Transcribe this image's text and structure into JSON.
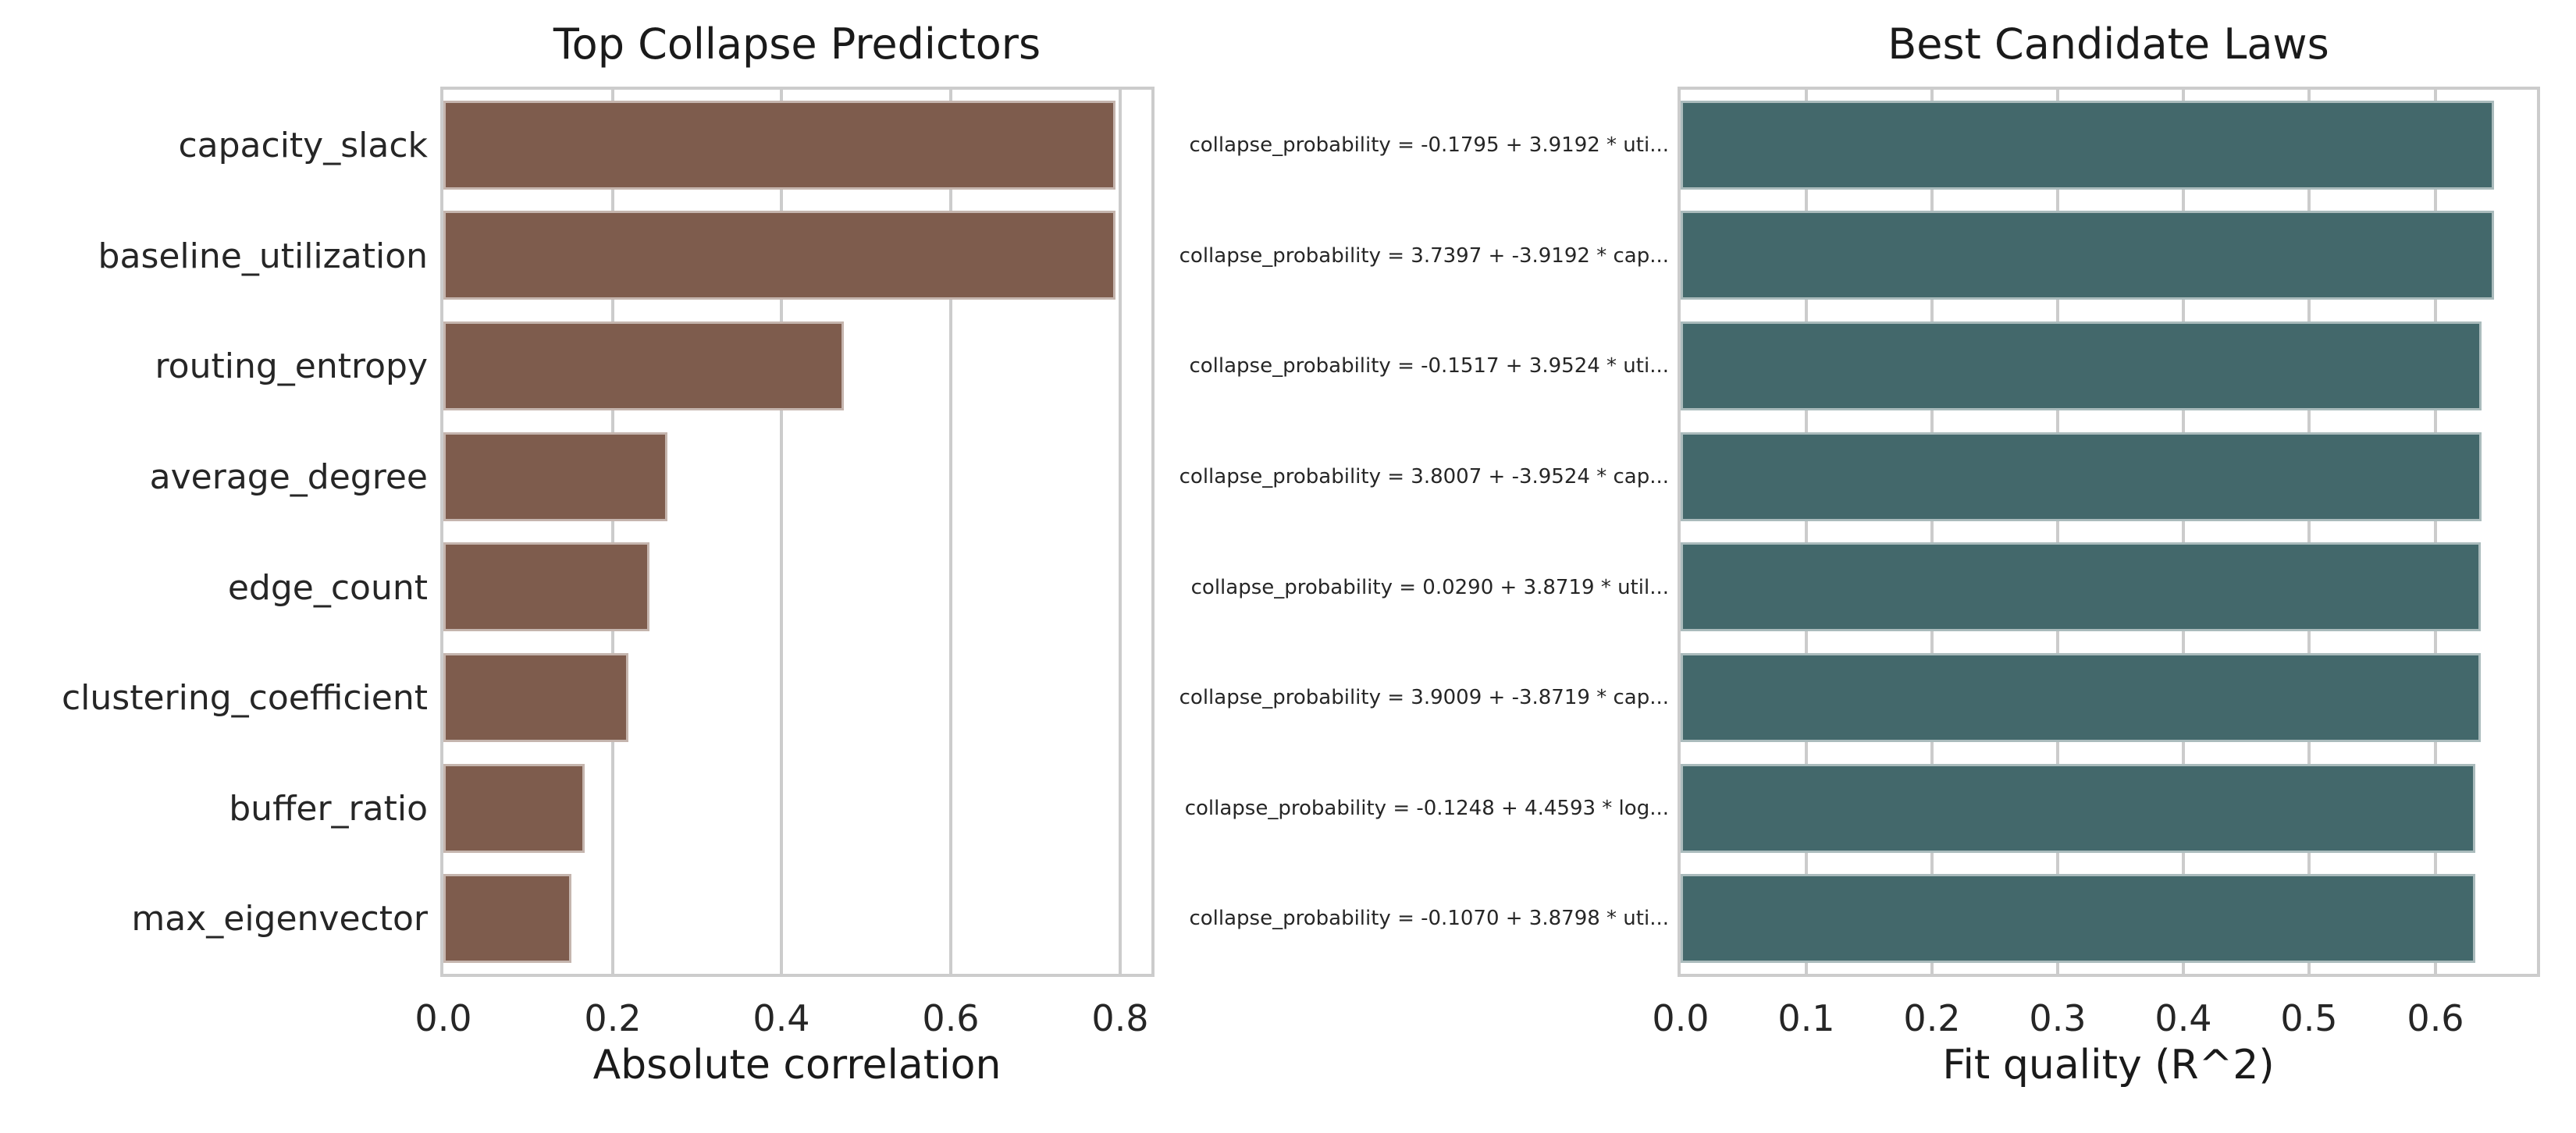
{
  "style": {
    "background": "#ffffff",
    "grid_color": "#cccccc",
    "spine_color": "#cccccc",
    "text_color": "#262626",
    "left_bar_color": "#7E5C4D",
    "right_bar_color": "#43686B"
  },
  "chart_data": [
    {
      "type": "bar",
      "orientation": "horizontal",
      "title": "Top Collapse Predictors",
      "xlabel": "Absolute correlation",
      "grid": true,
      "legend": null,
      "bar_color": "#7E5C4D",
      "categories": [
        "capacity_slack",
        "baseline_utilization",
        "routing_entropy",
        "average_degree",
        "edge_count",
        "clustering_coefficient",
        "buffer_ratio",
        "max_eigenvector"
      ],
      "values": [
        0.795,
        0.795,
        0.473,
        0.265,
        0.244,
        0.219,
        0.167,
        0.151
      ],
      "xtick_labels": [
        "0.0",
        "0.2",
        "0.4",
        "0.6",
        "0.8"
      ],
      "xtick_values": [
        0,
        0.2,
        0.4,
        0.6,
        0.8
      ],
      "xlim": [
        0,
        0.837
      ]
    },
    {
      "type": "bar",
      "orientation": "horizontal",
      "title": "Best Candidate Laws",
      "xlabel": "Fit quality (R^2)",
      "grid": true,
      "legend": null,
      "bar_color": "#43686B",
      "categories": [
        "collapse_probability = -0.1795 + 3.9192 * uti...",
        "collapse_probability = 3.7397 + -3.9192 * cap...",
        "collapse_probability = -0.1517 + 3.9524 * uti...",
        "collapse_probability = 3.8007 + -3.9524 * cap...",
        "collapse_probability = 0.0290 + 3.8719 * util...",
        "collapse_probability = 3.9009 + -3.8719 * cap...",
        "collapse_probability = -0.1248 + 4.4593 * log...",
        "collapse_probability = -0.1070 + 3.8798 * uti..."
      ],
      "values": [
        0.647,
        0.647,
        0.637,
        0.637,
        0.636,
        0.636,
        0.632,
        0.632
      ],
      "xtick_labels": [
        "0.0",
        "0.1",
        "0.2",
        "0.3",
        "0.4",
        "0.5",
        "0.6"
      ],
      "xtick_values": [
        0,
        0.1,
        0.2,
        0.3,
        0.4,
        0.5,
        0.6
      ],
      "xlim": [
        0,
        0.681
      ]
    }
  ]
}
